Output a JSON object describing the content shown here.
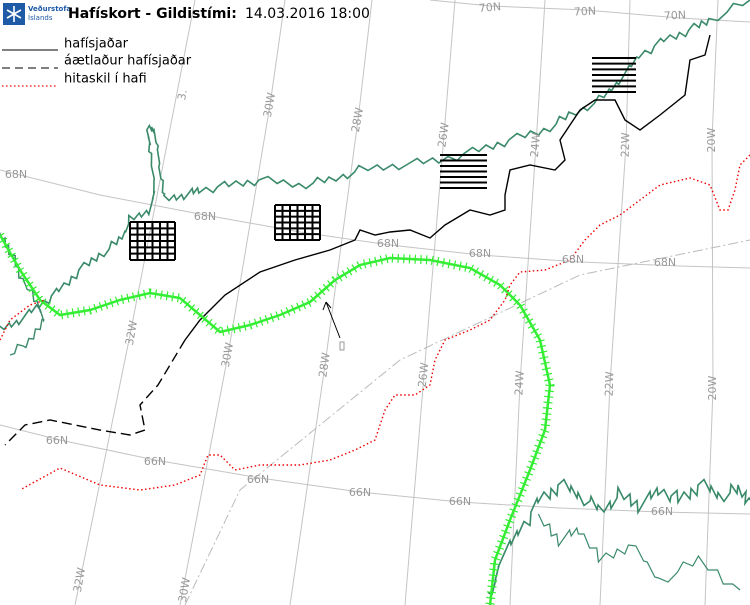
{
  "header": {
    "logo_line1": "Veðurstofa",
    "logo_line2": "Íslands",
    "title": "Hafískort - Gildistími:",
    "valid_time": "14.03.2016 18:00"
  },
  "legend": {
    "items": [
      "hafísjaðar",
      "áætlaður hafísjaðar",
      "hitaskil í hafi"
    ]
  },
  "map": {
    "grid_labels": [
      "70N",
      "70N",
      "70N",
      "3.",
      "30W",
      "28W",
      "26W",
      "24W",
      "22W",
      "20W",
      "68N",
      "68N",
      "68N",
      "68N",
      "68N",
      "68N",
      "32W",
      "30W",
      "28W",
      "26W",
      "24W",
      "22W",
      "20W",
      "66N",
      "66N",
      "66N",
      "66N",
      "66N",
      "66N",
      "32W",
      "30W"
    ]
  }
}
